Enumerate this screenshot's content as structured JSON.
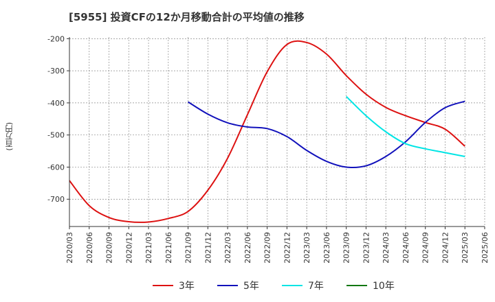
{
  "chart_data": {
    "type": "line",
    "title": "[5955]  投資CFの12か月移動合計の平均値の推移",
    "ylabel": "(百万円)",
    "xlabel": "",
    "ylim": [
      -785,
      -195
    ],
    "yticks": [
      -200,
      -300,
      -400,
      -500,
      -600,
      -700
    ],
    "x": [
      "2020/03",
      "2020/06",
      "2020/09",
      "2020/12",
      "2021/03",
      "2021/06",
      "2021/09",
      "2021/12",
      "2022/03",
      "2022/06",
      "2022/09",
      "2022/12",
      "2023/03",
      "2023/06",
      "2023/09",
      "2023/12",
      "2024/03",
      "2024/06",
      "2024/09",
      "2024/12",
      "2025/03",
      "2025/06"
    ],
    "grid": true,
    "legend_position": "bottom",
    "series": [
      {
        "name": "3年",
        "color": "#dd1111",
        "values": [
          -642,
          -720,
          -757,
          -770,
          -771,
          -760,
          -738,
          -672,
          -572,
          -437,
          -303,
          -218,
          -212,
          -248,
          -315,
          -373,
          -414,
          -440,
          -461,
          -482,
          -535,
          null
        ]
      },
      {
        "name": "5年",
        "color": "#1111bb",
        "values": [
          null,
          null,
          null,
          null,
          null,
          null,
          -397,
          -435,
          -462,
          -475,
          -480,
          -505,
          -548,
          -582,
          -600,
          -596,
          -567,
          -521,
          -461,
          -415,
          -395,
          null
        ]
      },
      {
        "name": "7年",
        "color": "#00e5e5",
        "values": [
          null,
          null,
          null,
          null,
          null,
          null,
          null,
          null,
          null,
          null,
          null,
          null,
          null,
          null,
          -380,
          -440,
          -490,
          -527,
          -543,
          -555,
          -567,
          null
        ]
      },
      {
        "name": "10年",
        "color": "#117711",
        "values": [
          null,
          null,
          null,
          null,
          null,
          null,
          null,
          null,
          null,
          null,
          null,
          null,
          null,
          null,
          null,
          null,
          null,
          null,
          null,
          null,
          null,
          null
        ]
      }
    ]
  }
}
